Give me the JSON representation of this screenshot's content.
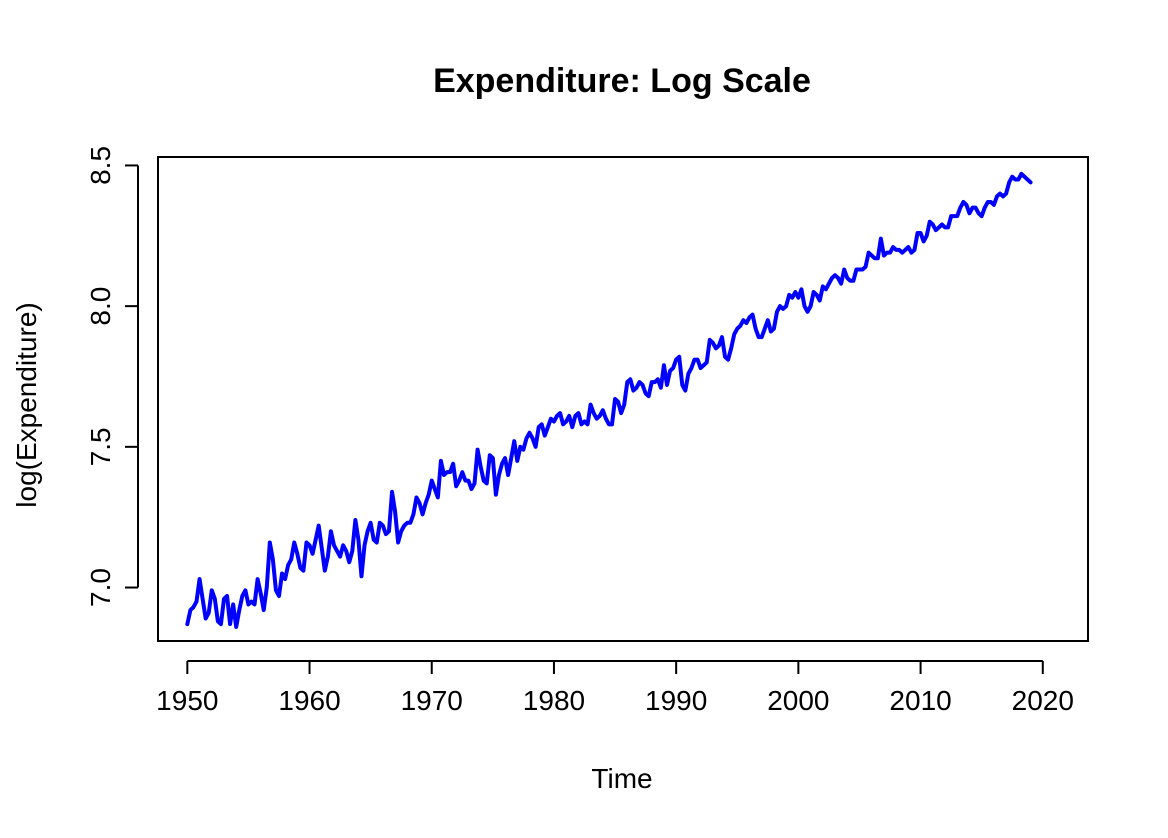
{
  "chart_data": {
    "type": "line",
    "title": "Expenditure: Log Scale",
    "xlabel": "Time",
    "ylabel": "log(Expenditure)",
    "xlim": [
      1947.6,
      2023.7
    ],
    "ylim": [
      6.81,
      8.53
    ],
    "xticks": [
      1950,
      1960,
      1970,
      1980,
      1990,
      2000,
      2010,
      2020
    ],
    "xtick_labels": [
      "1950",
      "1960",
      "1970",
      "1980",
      "1990",
      "2000",
      "2010",
      "2020"
    ],
    "yticks": [
      7.0,
      7.5,
      8.0,
      8.5
    ],
    "ytick_labels": [
      "7.0",
      "7.5",
      "8.0",
      "8.5"
    ],
    "grid": false,
    "colors": {
      "series": "#0000ff",
      "axes": "#000000",
      "background": "#ffffff"
    },
    "series": [
      {
        "frequency": "quarterly",
        "start": 1950,
        "values": [
          6.87,
          6.92,
          6.93,
          6.95,
          7.03,
          6.96,
          6.89,
          6.91,
          6.99,
          6.96,
          6.88,
          6.87,
          6.96,
          6.97,
          6.87,
          6.94,
          6.86,
          6.92,
          6.97,
          6.99,
          6.94,
          6.95,
          6.94,
          7.03,
          6.98,
          6.92,
          7.0,
          7.16,
          7.1,
          6.99,
          6.97,
          7.05,
          7.03,
          7.08,
          7.1,
          7.16,
          7.12,
          7.07,
          7.06,
          7.16,
          7.15,
          7.12,
          7.17,
          7.22,
          7.14,
          7.06,
          7.11,
          7.2,
          7.15,
          7.13,
          7.11,
          7.15,
          7.13,
          7.09,
          7.13,
          7.24,
          7.17,
          7.04,
          7.15,
          7.2,
          7.23,
          7.17,
          7.16,
          7.23,
          7.22,
          7.19,
          7.2,
          7.34,
          7.27,
          7.16,
          7.2,
          7.22,
          7.23,
          7.23,
          7.26,
          7.32,
          7.3,
          7.26,
          7.3,
          7.33,
          7.38,
          7.35,
          7.32,
          7.45,
          7.4,
          7.41,
          7.41,
          7.44,
          7.36,
          7.38,
          7.41,
          7.38,
          7.38,
          7.35,
          7.37,
          7.49,
          7.43,
          7.38,
          7.37,
          7.47,
          7.46,
          7.33,
          7.4,
          7.44,
          7.46,
          7.4,
          7.46,
          7.52,
          7.45,
          7.5,
          7.49,
          7.53,
          7.55,
          7.53,
          7.5,
          7.57,
          7.58,
          7.54,
          7.57,
          7.6,
          7.59,
          7.61,
          7.62,
          7.58,
          7.59,
          7.61,
          7.57,
          7.61,
          7.62,
          7.58,
          7.59,
          7.58,
          7.65,
          7.62,
          7.6,
          7.61,
          7.63,
          7.6,
          7.58,
          7.58,
          7.67,
          7.66,
          7.62,
          7.65,
          7.73,
          7.74,
          7.7,
          7.71,
          7.73,
          7.72,
          7.69,
          7.68,
          7.73,
          7.73,
          7.74,
          7.71,
          7.79,
          7.72,
          7.77,
          7.78,
          7.81,
          7.82,
          7.72,
          7.7,
          7.76,
          7.78,
          7.81,
          7.81,
          7.78,
          7.79,
          7.8,
          7.88,
          7.87,
          7.85,
          7.86,
          7.89,
          7.82,
          7.81,
          7.85,
          7.9,
          7.92,
          7.93,
          7.95,
          7.94,
          7.96,
          7.97,
          7.92,
          7.89,
          7.89,
          7.92,
          7.95,
          7.91,
          7.92,
          7.98,
          8.0,
          7.99,
          8.0,
          8.04,
          8.03,
          8.05,
          8.03,
          8.06,
          8.0,
          7.98,
          8.0,
          8.05,
          8.04,
          8.02,
          8.07,
          8.06,
          8.08,
          8.1,
          8.11,
          8.1,
          8.08,
          8.13,
          8.1,
          8.09,
          8.09,
          8.13,
          8.13,
          8.13,
          8.14,
          8.19,
          8.18,
          8.17,
          8.17,
          8.24,
          8.18,
          8.19,
          8.19,
          8.21,
          8.2,
          8.2,
          8.19,
          8.2,
          8.21,
          8.19,
          8.2,
          8.26,
          8.26,
          8.23,
          8.25,
          8.3,
          8.29,
          8.27,
          8.28,
          8.29,
          8.28,
          8.28,
          8.32,
          8.32,
          8.32,
          8.35,
          8.37,
          8.36,
          8.33,
          8.35,
          8.35,
          8.33,
          8.32,
          8.35,
          8.37,
          8.37,
          8.36,
          8.39,
          8.4,
          8.39,
          8.4,
          8.44,
          8.46,
          8.45,
          8.45,
          8.47,
          8.46,
          8.45,
          8.44
        ]
      }
    ]
  }
}
